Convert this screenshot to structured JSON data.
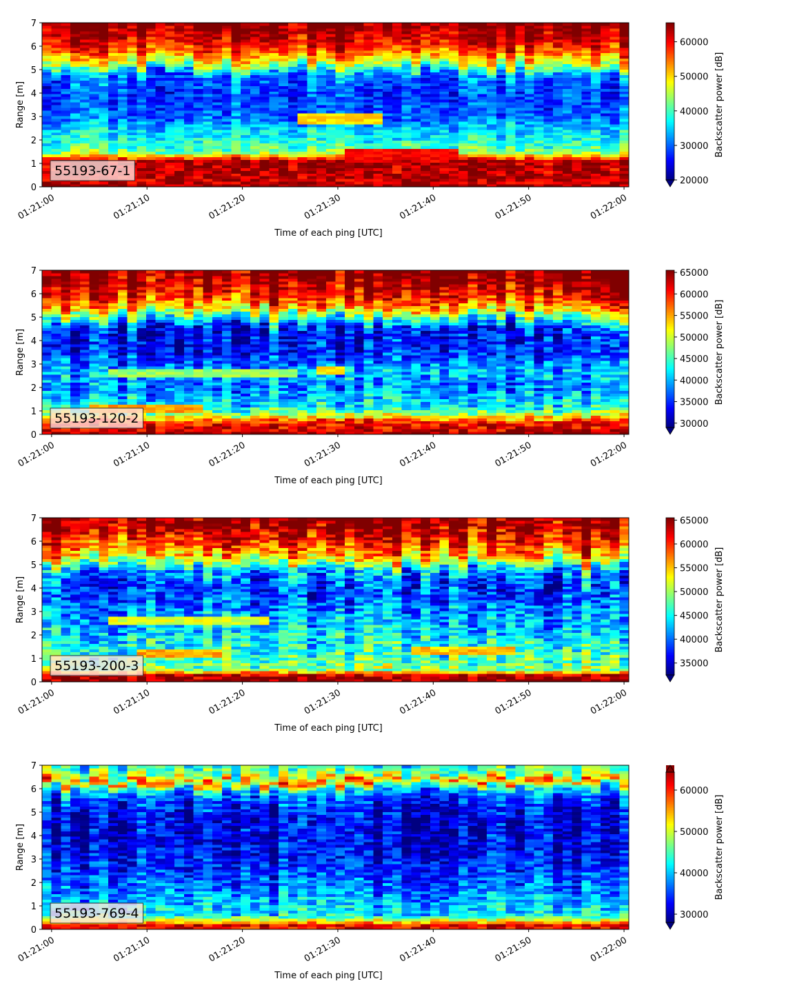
{
  "chart_data": [
    {
      "type": "heatmap",
      "label": "55193-67-1",
      "xlabel": "Time of each ping [UTC]",
      "ylabel": "Range [m]",
      "x_ticks": [
        "01:21:00",
        "01:21:10",
        "01:21:20",
        "01:21:30",
        "01:21:40",
        "01:21:50",
        "01:22:00"
      ],
      "y_ticks": [
        0,
        1,
        2,
        3,
        4,
        5,
        6,
        7
      ],
      "xlim_s": [
        -1,
        60.5
      ],
      "ylim": [
        0,
        7
      ],
      "colorbar": {
        "label": "Backscatter power [dB]",
        "vmin": 20000,
        "vmax": 65500,
        "ticks": [
          20000,
          30000,
          40000,
          50000,
          60000
        ],
        "extend": "min"
      },
      "profile": [
        [
          0,
          65500
        ],
        [
          0.2,
          62000
        ],
        [
          1.1,
          64000
        ],
        [
          1.5,
          42000
        ],
        [
          2.0,
          38000
        ],
        [
          2.5,
          35000
        ],
        [
          3.0,
          30000
        ],
        [
          4.0,
          28000
        ],
        [
          4.8,
          31000
        ],
        [
          5.2,
          45000
        ],
        [
          5.6,
          53000
        ],
        [
          6.0,
          59000
        ],
        [
          6.5,
          63000
        ],
        [
          7.0,
          65500
        ]
      ],
      "features": [
        {
          "t0": 25,
          "t1": 34,
          "r0": 2.7,
          "r1": 3.2,
          "value": 50000
        },
        {
          "t0": 30,
          "t1": 42,
          "r0": 1.2,
          "r1": 1.6,
          "value": 60000
        }
      ]
    },
    {
      "type": "heatmap",
      "label": "55193-120-2",
      "xlabel": "Time of each ping [UTC]",
      "ylabel": "Range [m]",
      "x_ticks": [
        "01:21:00",
        "01:21:10",
        "01:21:20",
        "01:21:30",
        "01:21:40",
        "01:21:50",
        "01:22:00"
      ],
      "y_ticks": [
        0,
        1,
        2,
        3,
        4,
        5,
        6,
        7
      ],
      "xlim_s": [
        -1,
        60.5
      ],
      "ylim": [
        0,
        7
      ],
      "colorbar": {
        "label": "Backscatter power [dB]",
        "vmin": 29000,
        "vmax": 65500,
        "ticks": [
          30000,
          35000,
          40000,
          45000,
          50000,
          55000,
          60000,
          65000
        ],
        "extend": "min"
      },
      "profile": [
        [
          0,
          65500
        ],
        [
          0.2,
          62000
        ],
        [
          0.55,
          60000
        ],
        [
          0.8,
          50000
        ],
        [
          1.2,
          42000
        ],
        [
          2.0,
          38000
        ],
        [
          2.7,
          40000
        ],
        [
          3.5,
          34000
        ],
        [
          4.5,
          33000
        ],
        [
          5.0,
          45000
        ],
        [
          5.5,
          56000
        ],
        [
          6.0,
          61000
        ],
        [
          6.5,
          64000
        ],
        [
          7.0,
          65500
        ]
      ],
      "features": [
        {
          "t0": 5,
          "t1": 25,
          "r0": 2.5,
          "r1": 2.8,
          "value": 48000
        },
        {
          "t0": 27,
          "t1": 30,
          "r0": 2.6,
          "r1": 2.9,
          "value": 52000
        },
        {
          "t0": 3,
          "t1": 15,
          "r0": 0.9,
          "r1": 1.3,
          "value": 55000
        }
      ]
    },
    {
      "type": "heatmap",
      "label": "55193-200-3",
      "xlabel": "Time of each ping [UTC]",
      "ylabel": "Range [m]",
      "x_ticks": [
        "01:21:00",
        "01:21:10",
        "01:21:20",
        "01:21:30",
        "01:21:40",
        "01:21:50",
        "01:22:00"
      ],
      "y_ticks": [
        0,
        1,
        2,
        3,
        4,
        5,
        6,
        7
      ],
      "xlim_s": [
        -1,
        60.5
      ],
      "ylim": [
        0,
        7
      ],
      "colorbar": {
        "label": "Backscatter power [dB]",
        "vmin": 32500,
        "vmax": 65500,
        "ticks": [
          35000,
          40000,
          45000,
          50000,
          55000,
          60000,
          65000
        ],
        "extend": "min"
      },
      "profile": [
        [
          0,
          65500
        ],
        [
          0.3,
          63000
        ],
        [
          0.5,
          50000
        ],
        [
          1.0,
          47000
        ],
        [
          2.0,
          44000
        ],
        [
          3.0,
          41000
        ],
        [
          4.0,
          38000
        ],
        [
          4.8,
          42000
        ],
        [
          5.2,
          52000
        ],
        [
          5.7,
          58000
        ],
        [
          6.2,
          62000
        ],
        [
          7.0,
          65500
        ]
      ],
      "features": [
        {
          "t0": 5,
          "t1": 22,
          "r0": 2.5,
          "r1": 2.8,
          "value": 52000
        },
        {
          "t0": 8,
          "t1": 17,
          "r0": 1.1,
          "r1": 1.4,
          "value": 56000
        },
        {
          "t0": 37,
          "t1": 48,
          "r0": 1.2,
          "r1": 1.5,
          "value": 55000
        }
      ]
    },
    {
      "type": "heatmap",
      "label": "55193-769-4",
      "xlabel": "Time of each ping [UTC]",
      "ylabel": "Range [m]",
      "x_ticks": [
        "01:21:00",
        "01:21:10",
        "01:21:20",
        "01:21:30",
        "01:21:40",
        "01:21:50",
        "01:22:00"
      ],
      "y_ticks": [
        0,
        1,
        2,
        3,
        4,
        5,
        6,
        7
      ],
      "xlim_s": [
        -1,
        60.5
      ],
      "ylim": [
        0,
        7
      ],
      "colorbar": {
        "label": "Backscatter power [dB]",
        "vmin": 28000,
        "vmax": 66000,
        "ticks": [
          30000,
          40000,
          50000,
          60000
        ],
        "extend": "both"
      },
      "profile": [
        [
          0,
          60000
        ],
        [
          0.15,
          63000
        ],
        [
          0.3,
          55000
        ],
        [
          0.6,
          42000
        ],
        [
          1.0,
          40000
        ],
        [
          2.0,
          36000
        ],
        [
          3.0,
          33000
        ],
        [
          4.0,
          31000
        ],
        [
          5.0,
          32000
        ],
        [
          5.6,
          35000
        ],
        [
          6.0,
          42000
        ],
        [
          6.3,
          58000
        ],
        [
          6.5,
          48000
        ],
        [
          7.0,
          42000
        ]
      ],
      "features": []
    }
  ]
}
